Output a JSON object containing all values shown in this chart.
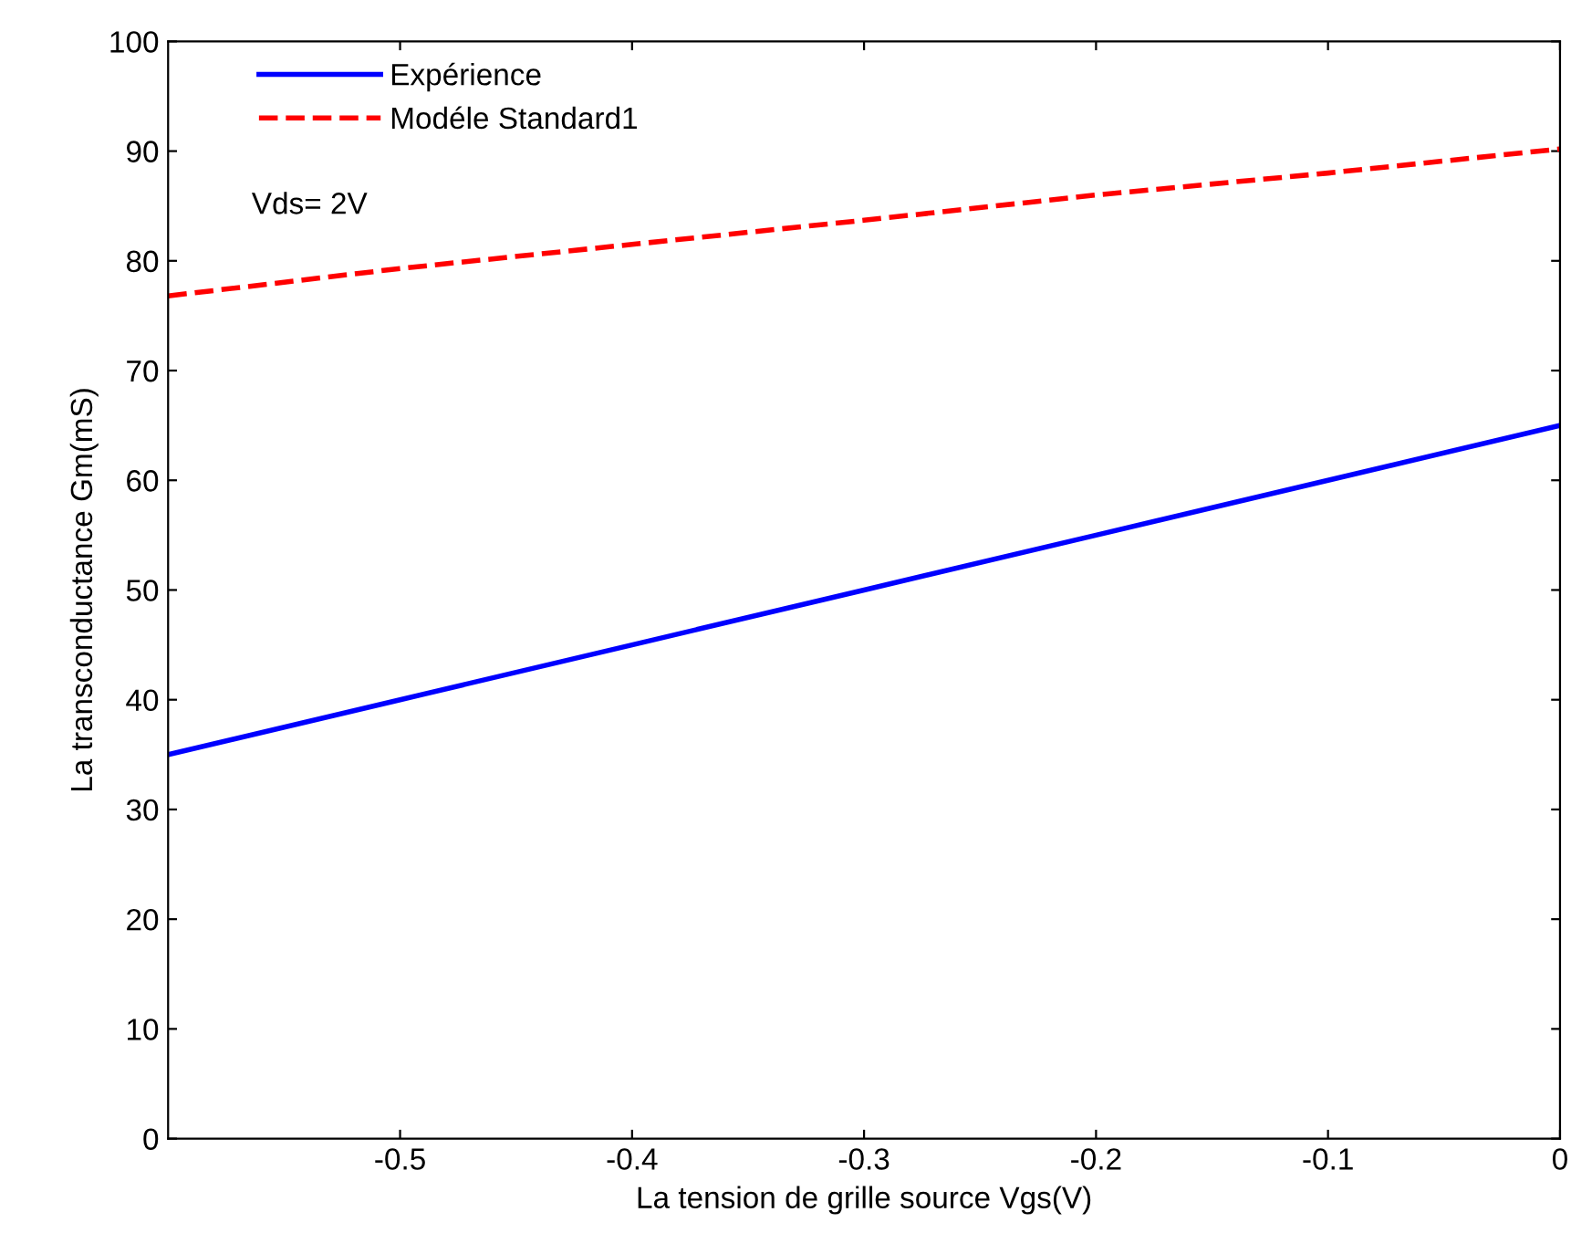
{
  "chart_data": {
    "type": "line",
    "xlabel": "La tension de grille source Vgs(V)",
    "ylabel": "La transconductance Gm(mS)",
    "x": [
      -0.6,
      -0.5,
      -0.4,
      -0.3,
      -0.2,
      -0.1,
      0
    ],
    "series": [
      {
        "name": "Expérience",
        "color": "#0000ff",
        "line_style": "solid",
        "values": [
          35,
          40,
          45,
          50,
          55,
          60,
          65
        ]
      },
      {
        "name": "Modéle Standard1",
        "color": "#ff0000",
        "line_style": "dashed",
        "values": [
          76.8,
          79.3,
          81.5,
          83.7,
          86,
          88,
          90.2
        ]
      }
    ],
    "annotations": [
      "Vds= 2V"
    ],
    "xlim": [
      -0.6,
      0
    ],
    "xticks": [
      -0.5,
      -0.4,
      -0.3,
      -0.2,
      -0.1,
      0
    ],
    "ylim": [
      0,
      100
    ],
    "yticks": [
      0,
      10,
      20,
      30,
      40,
      50,
      60,
      70,
      80,
      90,
      100
    ],
    "legend": "top left",
    "grid": false,
    "marker": "none"
  }
}
